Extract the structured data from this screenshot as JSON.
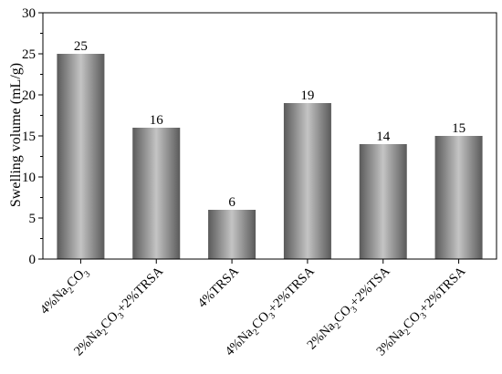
{
  "chart_data": {
    "type": "bar",
    "title": "",
    "xlabel": "",
    "ylabel": "Swelling volume (mL/g)",
    "ylim": [
      0,
      30
    ],
    "yticks": [
      0,
      5,
      10,
      15,
      20,
      25,
      30
    ],
    "categories": [
      {
        "id": "c1",
        "parts": [
          [
            "4%Na",
            "n"
          ],
          [
            "2",
            "sub"
          ],
          [
            "CO",
            "n"
          ],
          [
            "3",
            "sub"
          ]
        ]
      },
      {
        "id": "c2",
        "parts": [
          [
            "2%Na",
            "n"
          ],
          [
            "2",
            "sub"
          ],
          [
            "CO",
            "n"
          ],
          [
            "3",
            "sub"
          ],
          [
            "+2%TRSA",
            "n"
          ]
        ]
      },
      {
        "id": "c3",
        "parts": [
          [
            "4%TRSA",
            "n"
          ]
        ]
      },
      {
        "id": "c4",
        "parts": [
          [
            "4%Na",
            "n"
          ],
          [
            "2",
            "sub"
          ],
          [
            "CO",
            "n"
          ],
          [
            "3",
            "sub"
          ],
          [
            "+2%TRSA",
            "n"
          ]
        ]
      },
      {
        "id": "c5",
        "parts": [
          [
            "2%Na",
            "n"
          ],
          [
            "2",
            "sub"
          ],
          [
            "CO",
            "n"
          ],
          [
            "3",
            "sub"
          ],
          [
            "+2%TSA",
            "n"
          ]
        ]
      },
      {
        "id": "c6",
        "parts": [
          [
            "3%Na",
            "n"
          ],
          [
            "2",
            "sub"
          ],
          [
            "CO",
            "n"
          ],
          [
            "3",
            "sub"
          ],
          [
            "+2%TRSA",
            "n"
          ]
        ]
      }
    ],
    "values": [
      25,
      16,
      6,
      19,
      14,
      15
    ],
    "data_labels": [
      "25",
      "16",
      "6",
      "19",
      "14",
      "15"
    ],
    "grid": false,
    "bar_color": "#7f7f7f"
  }
}
